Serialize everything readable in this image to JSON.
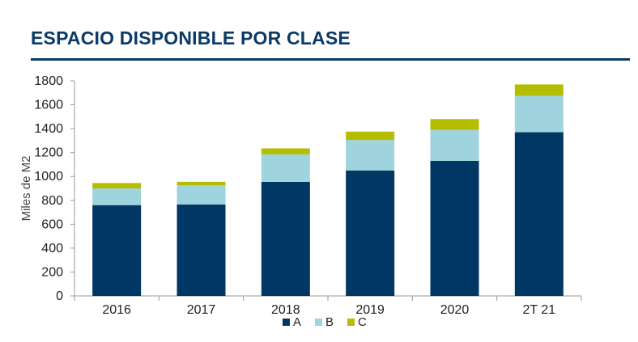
{
  "title": "ESPACIO DISPONIBLE POR CLASE",
  "chart_data": {
    "type": "bar",
    "stacked": true,
    "categories": [
      "2016",
      "2017",
      "2018",
      "2019",
      "2020",
      "2T 21"
    ],
    "series": [
      {
        "name": "A",
        "color": "#003764",
        "values": [
          760,
          765,
          955,
          1050,
          1130,
          1370
        ]
      },
      {
        "name": "B",
        "color": "#9fd3de",
        "values": [
          140,
          160,
          230,
          255,
          260,
          305
        ]
      },
      {
        "name": "C",
        "color": "#b5bd00",
        "values": [
          45,
          30,
          50,
          70,
          90,
          95
        ]
      }
    ],
    "ylabel": "Miles de M2",
    "xlabel": "",
    "ylim": [
      0,
      1800
    ],
    "yticks": [
      "0",
      "200",
      "400",
      "600",
      "800",
      "1000",
      "1200",
      "1400",
      "1600",
      "1800"
    ],
    "grid": false,
    "legend_position": "bottom"
  }
}
